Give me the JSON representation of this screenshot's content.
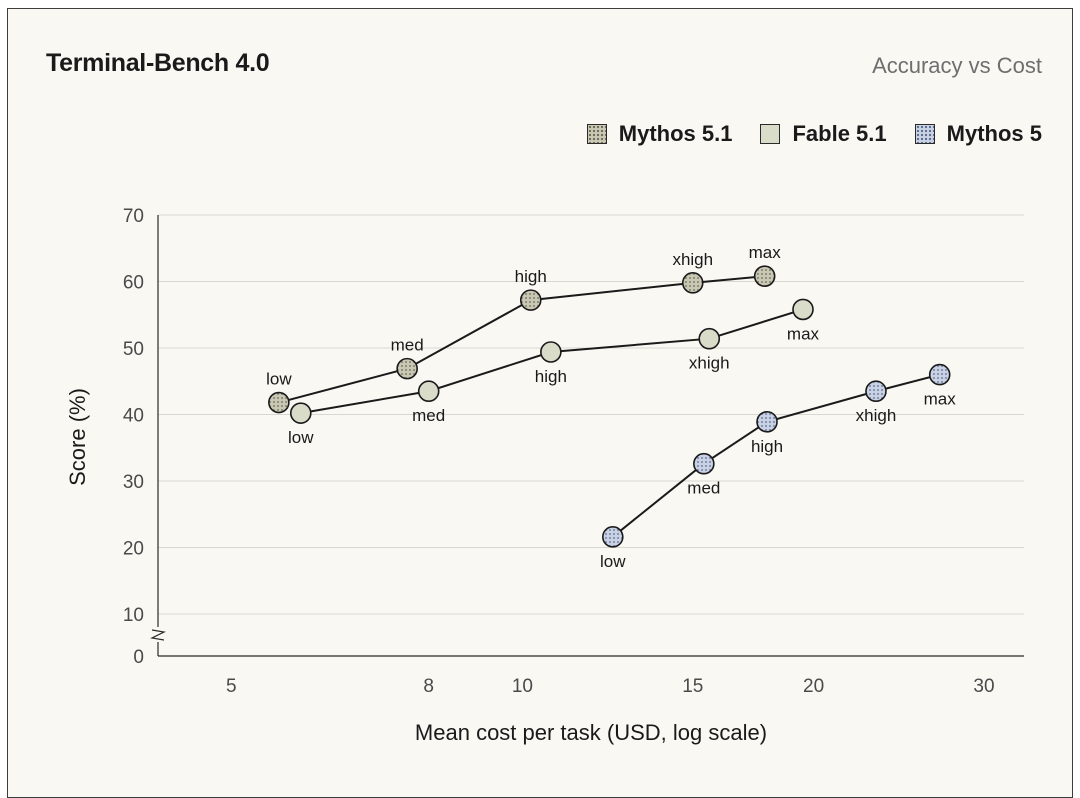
{
  "header": {
    "title": "Terminal-Bench 4.0",
    "subtitle": "Accuracy vs Cost"
  },
  "legend": [
    {
      "name": "Mythos 5.1",
      "fill": "#c9c8b4",
      "pattern": "dots-dark"
    },
    {
      "name": "Fable 5.1",
      "fill": "#d8dcc8",
      "pattern": "none"
    },
    {
      "name": "Mythos 5",
      "fill": "#c8d2e4",
      "pattern": "dots-blue"
    }
  ],
  "chart_data": {
    "type": "scatter",
    "xlabel": "Mean cost per task (USD, log scale)",
    "ylabel": "Score (%)",
    "x_scale": "log",
    "xlim": [
      4.2,
      33
    ],
    "ylim": [
      0,
      70
    ],
    "y_axis_break": true,
    "x_ticks": [
      5,
      8,
      10,
      15,
      20,
      30
    ],
    "y_ticks": [
      0,
      10,
      20,
      30,
      40,
      50,
      60,
      70
    ],
    "grid": "horizontal",
    "legend_position": "top-right",
    "series": [
      {
        "name": "Mythos 5.1",
        "color": "#c9c8b4",
        "points": [
          {
            "label": "low",
            "x": 5.6,
            "y": 41.8
          },
          {
            "label": "med",
            "x": 7.6,
            "y": 46.9
          },
          {
            "label": "high",
            "x": 10.2,
            "y": 57.2
          },
          {
            "label": "xhigh",
            "x": 15.0,
            "y": 59.8
          },
          {
            "label": "max",
            "x": 17.8,
            "y": 60.8
          }
        ]
      },
      {
        "name": "Fable 5.1",
        "color": "#d8dcc8",
        "points": [
          {
            "label": "low",
            "x": 5.9,
            "y": 40.2
          },
          {
            "label": "med",
            "x": 8.0,
            "y": 43.5
          },
          {
            "label": "high",
            "x": 10.7,
            "y": 49.4
          },
          {
            "label": "xhigh",
            "x": 15.6,
            "y": 51.4
          },
          {
            "label": "max",
            "x": 19.5,
            "y": 55.8
          }
        ]
      },
      {
        "name": "Mythos 5",
        "color": "#c8d2e4",
        "points": [
          {
            "label": "low",
            "x": 12.4,
            "y": 21.6
          },
          {
            "label": "med",
            "x": 15.4,
            "y": 32.6
          },
          {
            "label": "high",
            "x": 17.9,
            "y": 38.9
          },
          {
            "label": "xhigh",
            "x": 23.2,
            "y": 43.5
          },
          {
            "label": "max",
            "x": 27.0,
            "y": 46.0
          }
        ]
      }
    ]
  }
}
